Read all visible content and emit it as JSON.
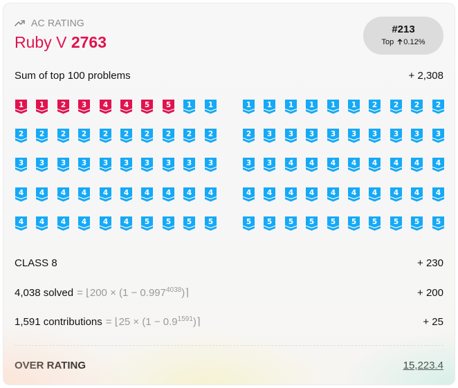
{
  "header": {
    "label": "AC RATING",
    "tier_name": "Ruby V",
    "tier_rating": "2763",
    "rank": "#213",
    "top_text": "Top",
    "top_percent": "0.12%"
  },
  "sum_row": {
    "label": "Sum of top 100 problems",
    "value": "+ 2,308"
  },
  "badges": {
    "left": [
      "1",
      "1",
      "2",
      "3",
      "4",
      "4",
      "5",
      "5",
      "1",
      "1",
      "2",
      "2",
      "2",
      "2",
      "2",
      "2",
      "2",
      "2",
      "2",
      "2",
      "3",
      "3",
      "3",
      "3",
      "3",
      "3",
      "3",
      "3",
      "3",
      "3",
      "4",
      "4",
      "4",
      "4",
      "4",
      "4",
      "4",
      "4",
      "4",
      "4",
      "4",
      "4",
      "4",
      "4",
      "4",
      "4",
      "5",
      "5",
      "5",
      "5"
    ],
    "left_colors": [
      "ruby",
      "ruby",
      "ruby",
      "ruby",
      "ruby",
      "ruby",
      "ruby",
      "ruby",
      "dia",
      "dia",
      "dia",
      "dia",
      "dia",
      "dia",
      "dia",
      "dia",
      "dia",
      "dia",
      "dia",
      "dia",
      "dia",
      "dia",
      "dia",
      "dia",
      "dia",
      "dia",
      "dia",
      "dia",
      "dia",
      "dia",
      "dia",
      "dia",
      "dia",
      "dia",
      "dia",
      "dia",
      "dia",
      "dia",
      "dia",
      "dia",
      "dia",
      "dia",
      "dia",
      "dia",
      "dia",
      "dia",
      "dia",
      "dia",
      "dia",
      "dia"
    ],
    "right": [
      "1",
      "1",
      "1",
      "1",
      "1",
      "1",
      "2",
      "2",
      "2",
      "2",
      "2",
      "3",
      "3",
      "3",
      "3",
      "3",
      "3",
      "3",
      "3",
      "3",
      "3",
      "3",
      "4",
      "4",
      "4",
      "4",
      "4",
      "4",
      "4",
      "4",
      "4",
      "4",
      "4",
      "4",
      "4",
      "4",
      "4",
      "4",
      "4",
      "4",
      "5",
      "5",
      "5",
      "5",
      "5",
      "5",
      "5",
      "5",
      "5",
      "5"
    ]
  },
  "colors": {
    "ruby": "#e0134f",
    "diamond": "#16a9f5"
  },
  "class_row": {
    "label": "CLASS 8",
    "value": "+ 230"
  },
  "solved_row": {
    "label": "4,038 solved",
    "eq": "=",
    "formula_main": "200 × (1 − 0.997",
    "formula_exp": "4038",
    "formula_end": ")",
    "value": "+ 200"
  },
  "contrib_row": {
    "label": "1,591 contributions",
    "eq": "=",
    "formula_main": "25 × (1 − 0.9",
    "formula_exp": "1591",
    "formula_end": ")",
    "value": "+ 25"
  },
  "over_rating": {
    "label": "OVER RATING",
    "value": "15,223.4"
  }
}
